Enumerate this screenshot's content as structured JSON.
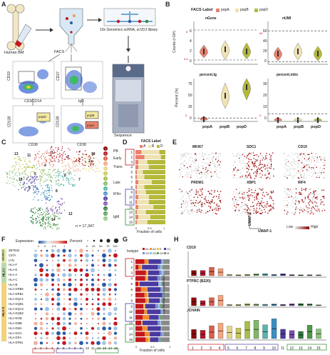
{
  "panels": {
    "A": {
      "label": "A",
      "human_bm": "Human BM",
      "facs": "FACS",
      "seq_lib": "10x Genomics scRNA, scVDJ library",
      "sequence": "Sequence",
      "gate_axes": [
        "CD19",
        "CD3/CD14",
        "CD27",
        "IgD",
        "CD138",
        "CD38",
        "CD138",
        "CD38"
      ],
      "gates": [
        "popD",
        "popB",
        "popA"
      ]
    },
    "B": {
      "label": "B",
      "legend_title": "FACS Label",
      "legend": [
        "popA",
        "popB",
        "popD"
      ],
      "plots": [
        "nGene",
        "nUMI",
        "percent.Ig",
        "percent.mito"
      ],
      "ylabel_top": "Counts (×10³)",
      "ylabel_bottom": "Percent (%)",
      "xcats": [
        "popA",
        "popB",
        "popD"
      ],
      "ticks_ngene": [
        "0",
        "2",
        "4",
        "6"
      ],
      "ticks_numi": [
        "0",
        "20",
        "40",
        "60"
      ],
      "ticks_pct": [
        "0",
        "25",
        "50",
        "75"
      ],
      "ticks_mito": [
        "0",
        "10",
        "20",
        "30"
      ],
      "thresholds": [
        "6",
        "60",
        "0.6",
        "5",
        "5"
      ]
    },
    "C": {
      "label": "C",
      "n": "n = 17,347",
      "legend": [
        "PB",
        "Early",
        "Trans",
        "Late",
        "IFN+",
        "IgM"
      ],
      "cluster_labels": [
        "13",
        "11",
        "1",
        "2",
        "3",
        "4",
        "5",
        "6",
        "7",
        "8",
        "9",
        "10",
        "12",
        "14",
        "15"
      ]
    },
    "D": {
      "label": "D",
      "legend_title": "FACS Label",
      "legend": [
        "A",
        "B",
        "D"
      ],
      "rows": [
        "1",
        "2",
        "3",
        "4",
        "5",
        "6",
        "7",
        "8",
        "9",
        "10",
        "11",
        "12",
        "13",
        "14",
        "15"
      ],
      "xlabel": "Fraction of cells",
      "xticks": [
        "0",
        "0.5",
        "1"
      ]
    },
    "E": {
      "label": "E",
      "genes": [
        "MKI67",
        "SDC1",
        "CD19",
        "PRDM1",
        "XBP1",
        "IRF4"
      ],
      "low": "Low",
      "high": "High",
      "umap1": "UMAP-1",
      "umap2": "UMAP-2"
    },
    "F": {
      "label": "F",
      "expr_title": "Expression",
      "expr_ticks": [
        "-1",
        "0",
        "0.5",
        "1"
      ],
      "pct_title": "Percent",
      "pct_ticks": [
        "0",
        "25",
        "50",
        "75",
        "100"
      ],
      "groups": [
        "Inhibitor",
        "HLA I",
        "HLA II"
      ],
      "genes": [
        "ZBTB32",
        "CIITA",
        "LYN",
        "HLA-F",
        "HLA-E",
        "HLA-A",
        "HLA-C",
        "HLA-B",
        "HLA-DRB5",
        "HLA-DRB1",
        "HLA-DQA1",
        "HLA-DQB1",
        "HLA-DQA2",
        "HLA-DQB2",
        "HLA-DOB",
        "HLA-DMB",
        "HLA-DMA",
        "HLA-DOA",
        "HLA-DRA",
        "HLA-DPB1"
      ],
      "clusters": [
        "1",
        "2",
        "3",
        "4",
        "5",
        "6",
        "7",
        "8",
        "9",
        "10",
        "11",
        "12",
        "13",
        "14",
        "15"
      ]
    },
    "G": {
      "label": "G",
      "legend_title": "Isotype",
      "legend": [
        "A1",
        "A2",
        "E",
        "G1",
        "G2",
        "G3",
        "G4",
        "M"
      ],
      "rows": [
        "1",
        "2",
        "3",
        "4",
        "5",
        "6",
        "7",
        "8",
        "9",
        "10",
        "11",
        "12",
        "13",
        "14",
        "15"
      ],
      "xlabel": "Fraction of cells",
      "xticks": [
        "0",
        "0.5",
        "1"
      ]
    },
    "H": {
      "label": "H",
      "genes": [
        "CD19",
        "PTPRC (B220)",
        "JCHAIN"
      ],
      "ylabel": "Log-Normalized Expression",
      "clusters": [
        "1",
        "2",
        "3",
        "4",
        "5",
        "6",
        "7",
        "8",
        "9",
        "10",
        "11",
        "12",
        "13",
        "14",
        "15"
      ]
    }
  },
  "colors": {
    "popA": "#e8826e",
    "popB": "#efe3b4",
    "popD": "#b4b93a",
    "red": "#c3181d",
    "purple": "#4a3aa0",
    "green": "#2a8a2a"
  }
}
